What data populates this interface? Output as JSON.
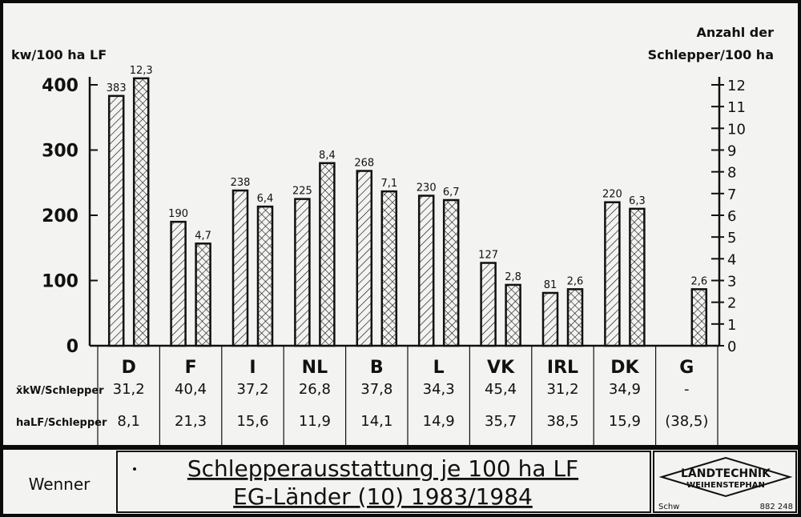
{
  "chart_data": {
    "type": "bar",
    "categories": [
      "D",
      "F",
      "I",
      "NL",
      "B",
      "L",
      "VK",
      "IRL",
      "DK",
      "G"
    ],
    "series": [
      {
        "values": [
          383,
          190,
          238,
          225,
          268,
          230,
          127,
          81,
          220,
          null
        ],
        "labels": [
          "383",
          "190",
          "238",
          "225",
          "268",
          "230",
          "127",
          "81",
          "220",
          ""
        ]
      },
      {
        "values": [
          12.3,
          4.7,
          6.4,
          8.4,
          7.1,
          6.7,
          2.8,
          2.6,
          6.3,
          2.6
        ],
        "labels": [
          "12,3",
          "4,7",
          "6,4",
          "8,4",
          "7,1",
          "6,7",
          "2,8",
          "2,6",
          "6,3",
          "2,6"
        ]
      }
    ],
    "ylabel_left": "kw/100 ha LF",
    "ylabel_right_line1": "Anzahl der",
    "ylabel_right_line2": "Schlepper/100 ha",
    "ylim_left": [
      0,
      400
    ],
    "ylim_right": [
      0,
      12
    ],
    "left_ticks": [
      "0",
      "100",
      "200",
      "300",
      "400"
    ],
    "right_ticks": [
      "0",
      "1",
      "2",
      "3",
      "4",
      "5",
      "6",
      "7",
      "8",
      "9",
      "10",
      "11",
      "12"
    ]
  },
  "table": {
    "rows": [
      {
        "label": "x̄kW/Schlepper",
        "cells": [
          "31,2",
          "40,4",
          "37,2",
          "26,8",
          "37,8",
          "34,3",
          "45,4",
          "31,2",
          "34,9",
          "-"
        ]
      },
      {
        "label": "haLF/Schlepper",
        "cells": [
          "8,1",
          "21,3",
          "15,6",
          "11,9",
          "14,1",
          "14,9",
          "35,7",
          "38,5",
          "15,9",
          "(38,5)"
        ]
      }
    ]
  },
  "footer": {
    "author": "Wenner",
    "title_line1": "Schlepperausstattung je 100 ha LF",
    "title_line2": "EG-Länder (10) 1983/1984",
    "logo_line1": "LANDTECHNIK",
    "logo_line2": "WEIHENSTEPHAN",
    "code_left": "Schw",
    "code_right": "882 248"
  },
  "colors": {
    "paper": "#f3f3f1",
    "ink": "#111111",
    "frame": "#0b0b0b"
  }
}
